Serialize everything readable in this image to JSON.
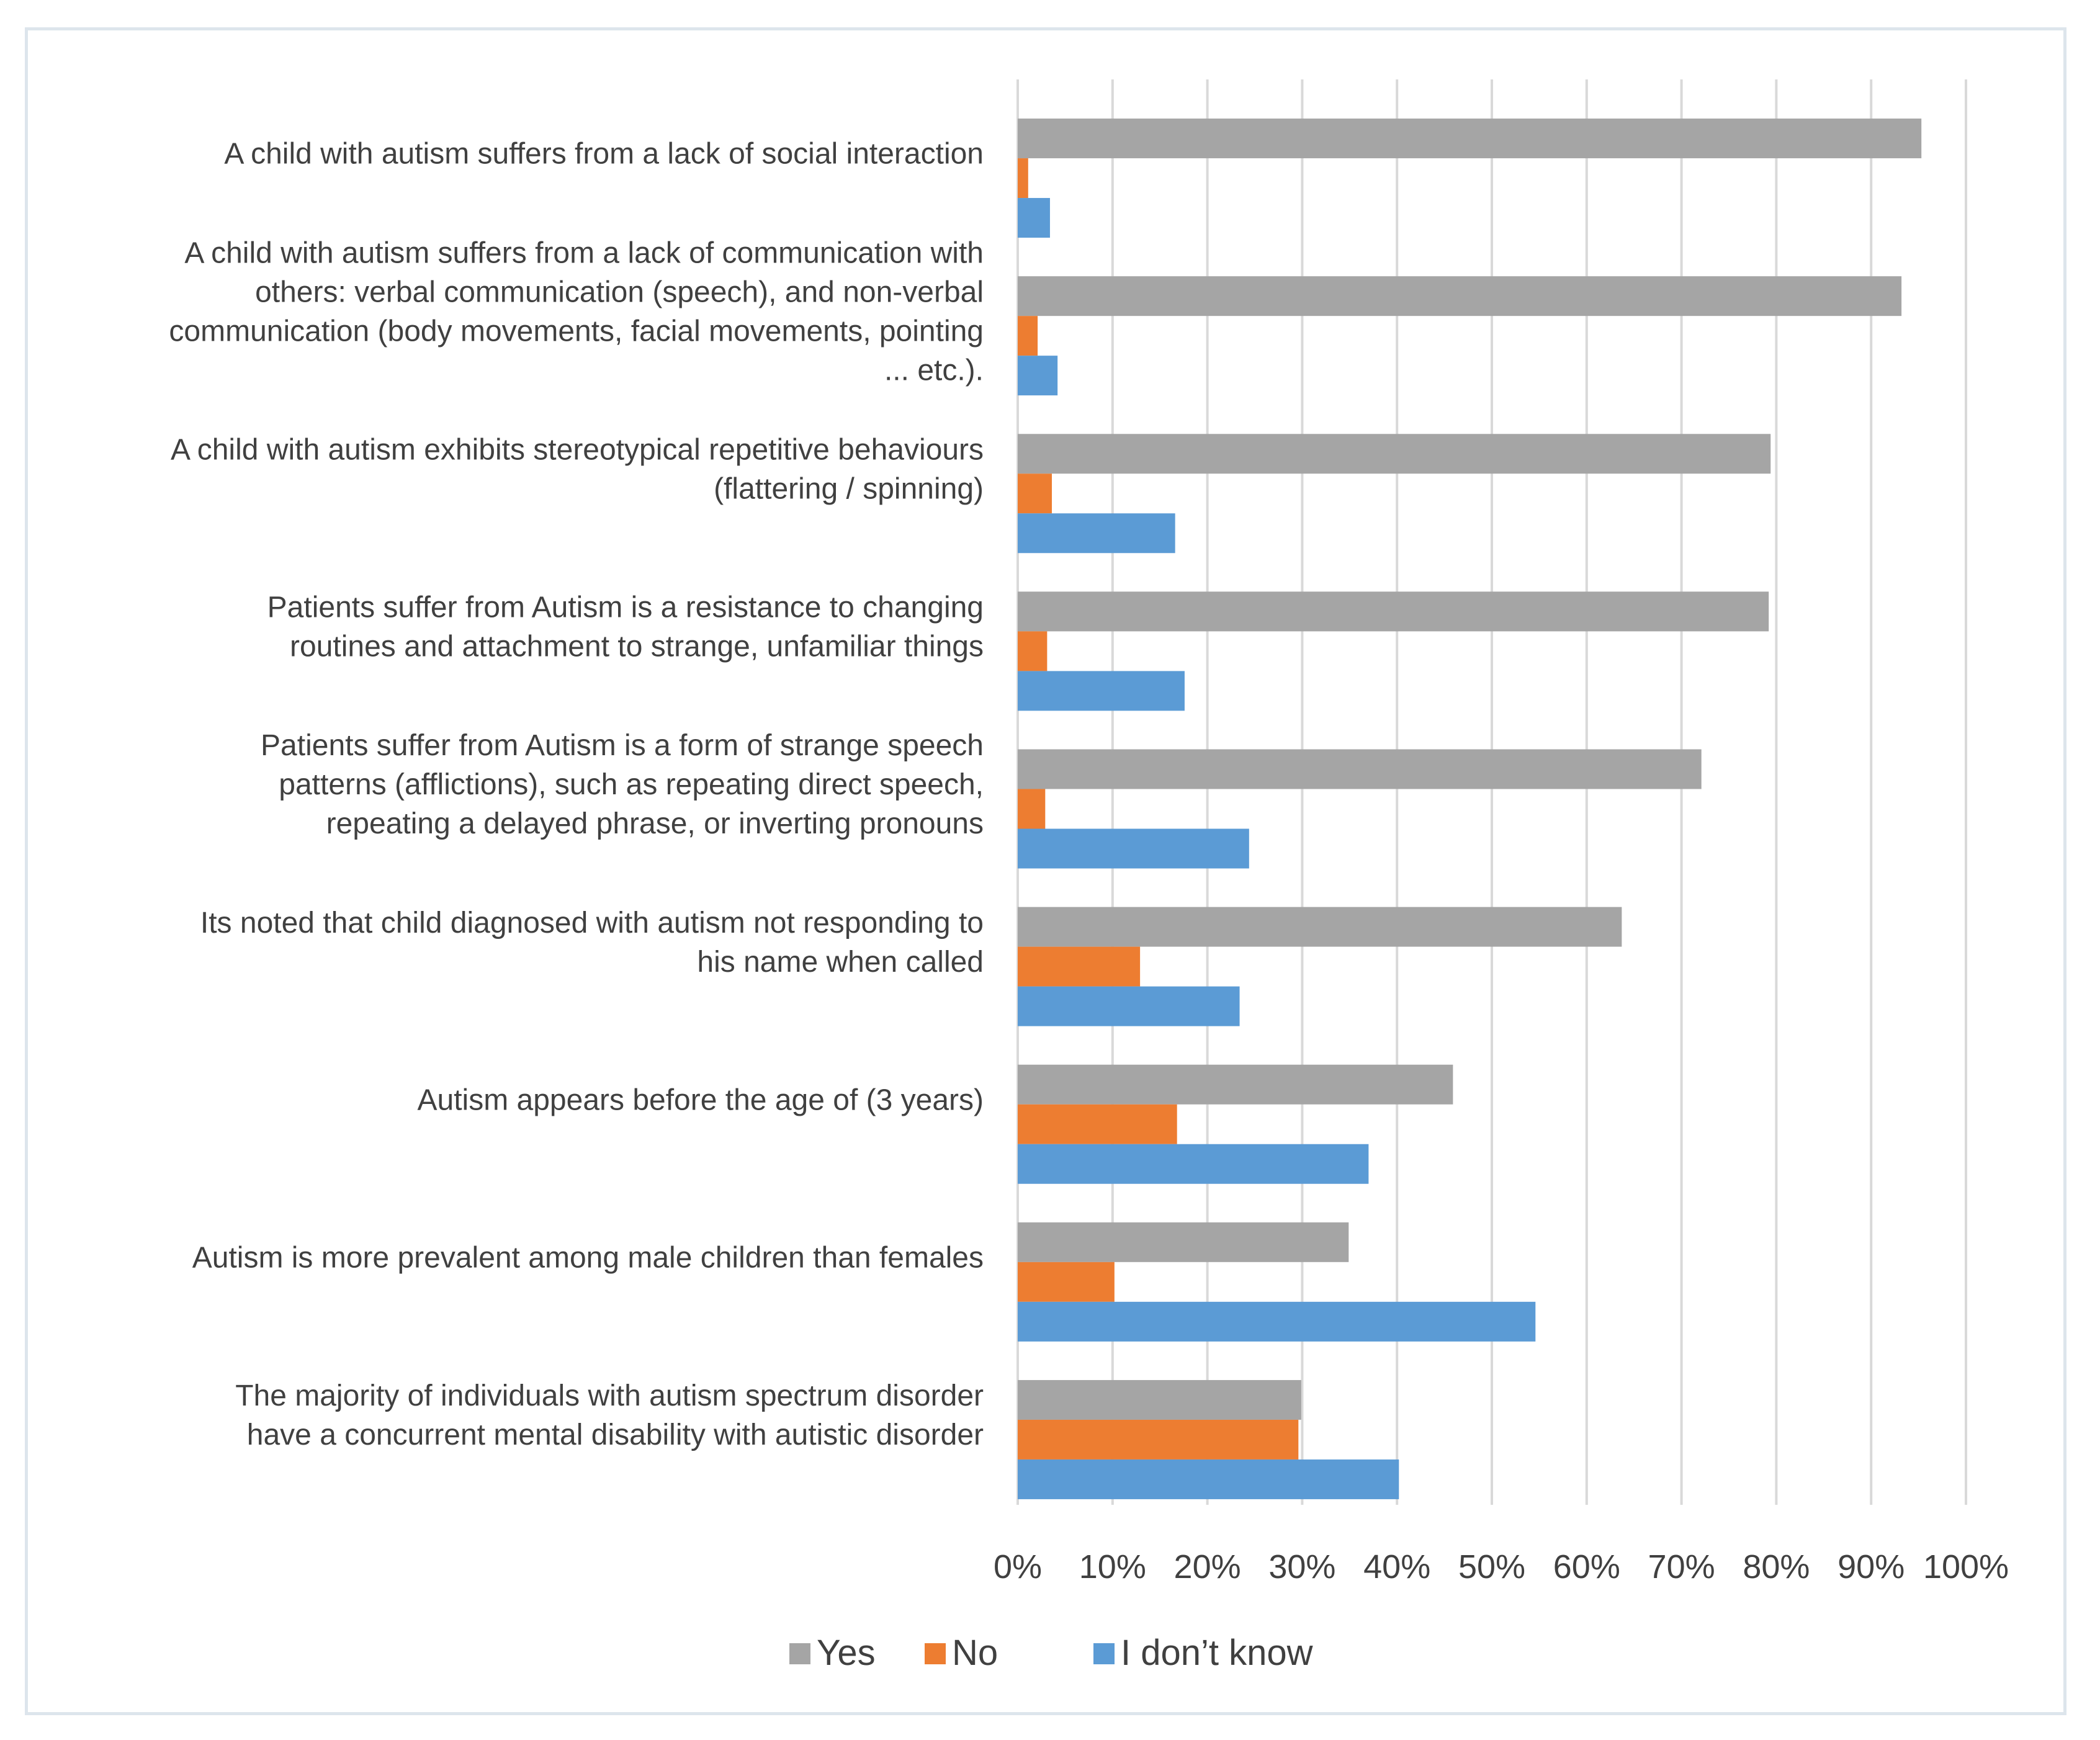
{
  "chart_data": {
    "type": "bar",
    "orientation": "horizontal",
    "categories": [
      [
        "A child with autism suffers from a lack of social interaction"
      ],
      [
        "A child with autism suffers from a lack of communication with",
        "others: verbal communication (speech), and non-verbal",
        "communication (body movements, facial movements, pointing",
        "... etc.)."
      ],
      [
        "A child with autism exhibits stereotypical repetitive behaviours",
        "(flattering / spinning)"
      ],
      [
        "Patients suffer from Autism is a resistance to changing",
        "routines and attachment to strange, unfamiliar things"
      ],
      [
        "Patients suffer from Autism is a form of strange speech",
        "patterns (afflictions), such as repeating direct speech,",
        "repeating a delayed phrase, or inverting pronouns"
      ],
      [
        "Its noted that child diagnosed with autism not responding to",
        "his name when called"
      ],
      [
        "Autism appears before the age of (3 years)"
      ],
      [
        "Autism is more prevalent among male children than females"
      ],
      [
        "The majority of individuals with autism spectrum disorder",
        "have a concurrent mental disability with autistic disorder"
      ]
    ],
    "series": [
      {
        "name": "Yes",
        "color": "#a5a5a5",
        "values": [
          95.3,
          93.2,
          79.4,
          79.2,
          72.1,
          63.7,
          45.9,
          34.9,
          29.9
        ]
      },
      {
        "name": "No",
        "color": "#ed7d31",
        "values": [
          1.1,
          2.1,
          3.6,
          3.1,
          2.9,
          12.9,
          16.8,
          10.2,
          29.6
        ]
      },
      {
        "name": "I don’t know",
        "color": "#5b9bd5",
        "values": [
          3.4,
          4.2,
          16.6,
          17.6,
          24.4,
          23.4,
          37.0,
          54.6,
          40.2
        ]
      }
    ],
    "xlim": [
      0,
      100
    ],
    "xticks": [
      "0%",
      "10%",
      "20%",
      "30%",
      "40%",
      "50%",
      "60%",
      "70%",
      "80%",
      "90%",
      "100%"
    ],
    "grid": true,
    "legend": "bottom",
    "title": "",
    "xlabel": "",
    "ylabel": ""
  }
}
